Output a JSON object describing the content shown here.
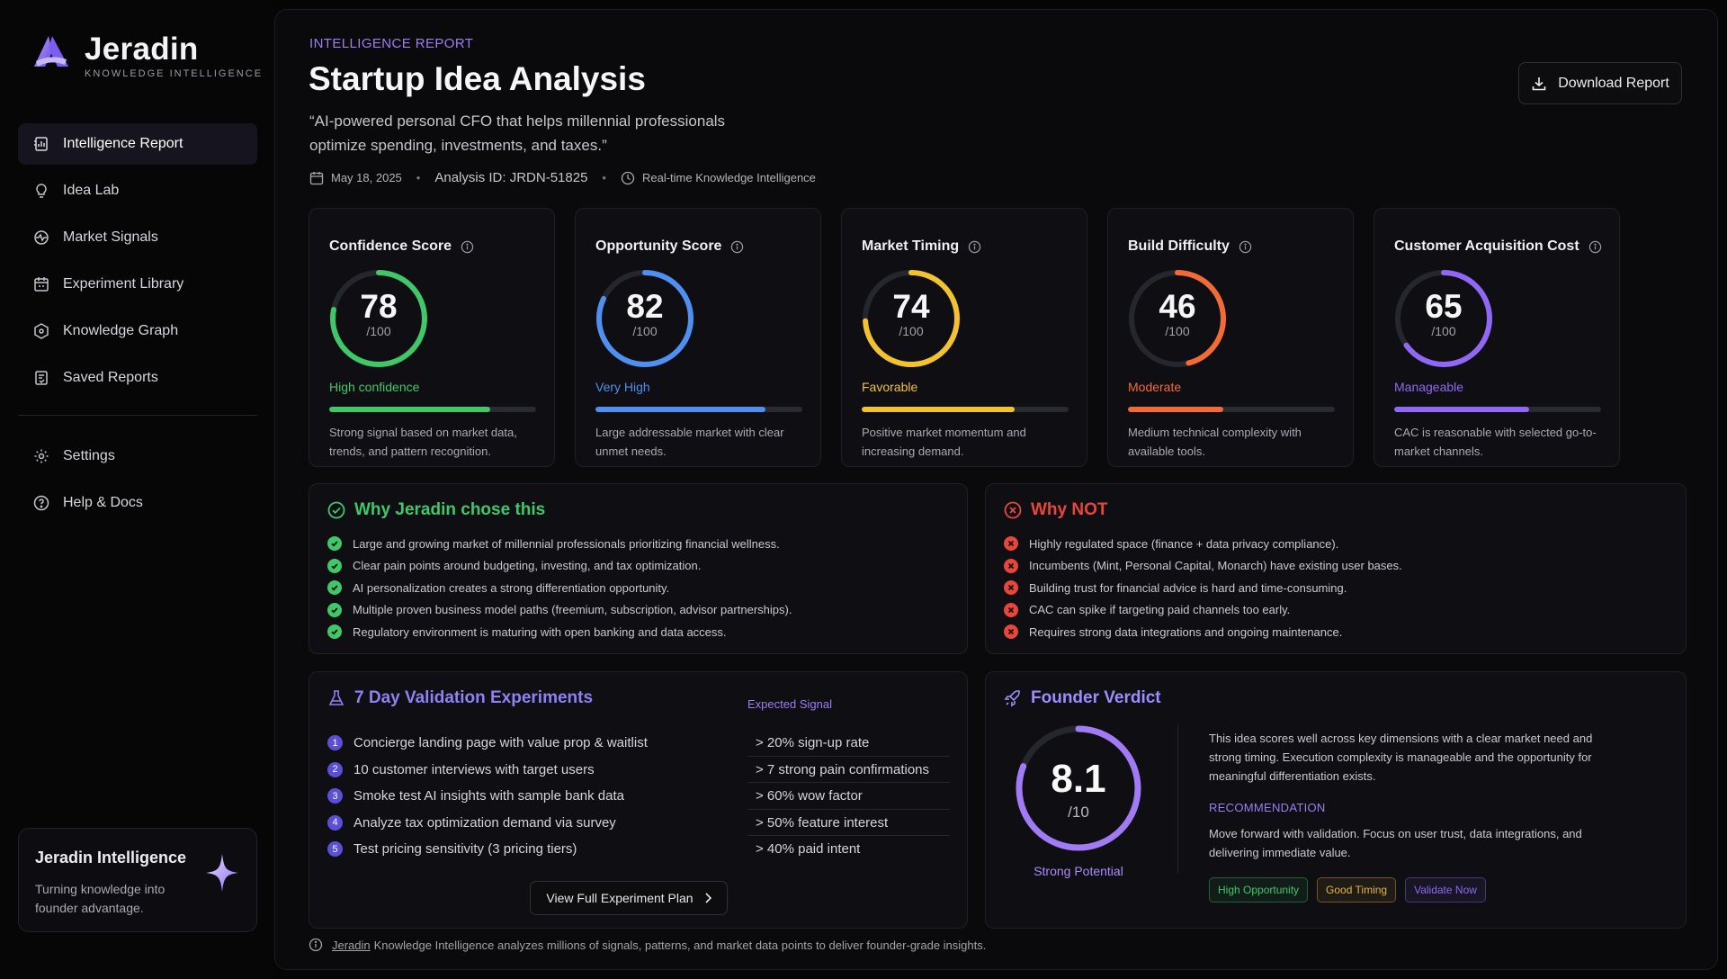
{
  "brand": {
    "name": "Jeradin",
    "tagline": "KNOWLEDGE INTELLIGENCE"
  },
  "nav": {
    "items": [
      {
        "label": "Intelligence Report",
        "icon": "report-icon",
        "active": true
      },
      {
        "label": "Idea Lab",
        "icon": "bulb-icon"
      },
      {
        "label": "Market Signals",
        "icon": "signal-icon"
      },
      {
        "label": "Experiment Library",
        "icon": "library-icon"
      },
      {
        "label": "Knowledge Graph",
        "icon": "graph-icon"
      },
      {
        "label": "Saved Reports",
        "icon": "bookmark-icon"
      }
    ],
    "secondary": [
      {
        "label": "Settings",
        "icon": "gear-icon"
      },
      {
        "label": "Help & Docs",
        "icon": "help-icon"
      }
    ]
  },
  "promo": {
    "title": "Jeradin Intelligence",
    "text": "Turning knowledge into founder advantage."
  },
  "header": {
    "eyebrow": "INTELLIGENCE REPORT",
    "title": "Startup Idea Analysis",
    "tagline": "“AI-powered personal CFO that helps millennial professionals optimize spending, investments, and taxes.”",
    "date": "May 18, 2025",
    "analysis_id": "Analysis ID: JRDN-51825",
    "source": "Real-time Knowledge Intelligence",
    "download_label": "Download Report"
  },
  "scores": [
    {
      "title": "Confidence Score",
      "value": "78",
      "max": "/100",
      "fraction": 0.78,
      "status": "High confidence",
      "color": "#3fc76a",
      "desc": "Strong signal based on market data, trends, and pattern recognition."
    },
    {
      "title": "Opportunity Score",
      "value": "82",
      "max": "/100",
      "fraction": 0.82,
      "status": "Very High",
      "color": "#4f8ff0",
      "desc": "Large addressable market with clear unmet needs."
    },
    {
      "title": "Market Timing",
      "value": "74",
      "max": "/100",
      "fraction": 0.74,
      "status": "Favorable",
      "color": "#f2c230",
      "desc": "Positive market momentum and increasing demand."
    },
    {
      "title": "Build Difficulty",
      "value": "46",
      "max": "/100",
      "fraction": 0.46,
      "status": "Moderate",
      "color": "#f26b35",
      "desc": "Medium technical complexity with available tools."
    },
    {
      "title": "Customer Acquisition Cost",
      "value": "65",
      "max": "/100",
      "fraction": 0.65,
      "status": "Manageable",
      "color": "#9068f5",
      "desc": "CAC is reasonable with selected go-to-market channels."
    }
  ],
  "why": {
    "title": "Why Jeradin chose this",
    "color": "#3fc76a",
    "items": [
      "Large and growing market of millennial professionals prioritizing financial wellness.",
      "Clear pain points around budgeting, investing, and tax optimization.",
      "AI personalization creates a strong differentiation opportunity.",
      "Multiple proven business model paths (freemium, subscription, advisor partnerships).",
      "Regulatory environment is maturing with open banking and data access."
    ]
  },
  "why_not": {
    "title": "Why NOT",
    "color": "#e8463c",
    "items": [
      "Highly regulated space (finance + data privacy compliance).",
      "Incumbents (Mint, Personal Capital, Monarch) have existing user bases.",
      "Building trust for financial advice is hard and time-consuming.",
      "CAC can spike if targeting paid channels too early.",
      "Requires strong data integrations and ongoing maintenance."
    ]
  },
  "experiments": {
    "title": "7 Day Validation Experiments",
    "signal_header": "Expected Signal",
    "rows": [
      {
        "num": "1",
        "label": "Concierge landing page with value prop & waitlist",
        "signal": "> 20% sign-up rate"
      },
      {
        "num": "2",
        "label": "10 customer interviews with target users",
        "signal": "> 7 strong pain confirmations"
      },
      {
        "num": "3",
        "label": "Smoke test AI insights with sample bank data",
        "signal": "> 60% wow factor"
      },
      {
        "num": "4",
        "label": "Analyze tax optimization demand via survey",
        "signal": "> 50% feature interest"
      },
      {
        "num": "5",
        "label": "Test pricing sensitivity (3 pricing tiers)",
        "signal": "> 40% paid intent"
      }
    ],
    "button_label": "View Full Experiment Plan"
  },
  "verdict": {
    "title": "Founder Verdict",
    "value": "8.1",
    "max": "/10",
    "fraction": 0.81,
    "status": "Strong Potential",
    "summary": "This idea scores well across key dimensions with a clear market need and strong timing. Execution complexity is manageable and the opportunity for meaningful differentiation exists.",
    "recommendation_label": "RECOMMENDATION",
    "recommendation": "Move forward with validation. Focus on user trust, data integrations, and delivering immediate value.",
    "tags": [
      {
        "label": "High Opportunity",
        "color": "#3fc76a"
      },
      {
        "label": "Good Timing",
        "color": "#e8b23a"
      },
      {
        "label": "Validate Now",
        "color": "#9068f5"
      }
    ]
  },
  "footnote": {
    "link": "Jeradin",
    "text": "Knowledge Intelligence analyzes millions of signals, patterns, and market data points to deliver founder-grade insights."
  },
  "colors": {
    "accent": "#9b7ff0",
    "background": "#0a0a0c"
  }
}
